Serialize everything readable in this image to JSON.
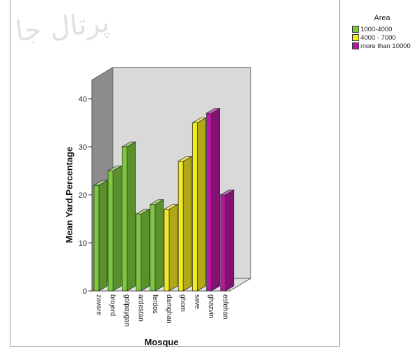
{
  "chart_data": {
    "type": "bar",
    "xlabel": "Mosque",
    "ylabel": "Mean Yard.Percentage",
    "ylim": [
      0,
      40
    ],
    "yticks": [
      0,
      10,
      20,
      30,
      40
    ],
    "categories": [
      "zavare",
      "brojerd",
      "golpaygan",
      "ardestan",
      "ferdos",
      "damghan",
      "ghom",
      "save",
      "ghazvin",
      "esfehan"
    ],
    "values": [
      22,
      25,
      30,
      16,
      18,
      17,
      27,
      35,
      37,
      20
    ],
    "groups": [
      "1000-4000",
      "1000-4000",
      "1000-4000",
      "1000-4000",
      "1000-4000",
      "4000 - 7000",
      "4000 - 7000",
      "4000 - 7000",
      "more than 10000",
      "more than 10000"
    ],
    "grid": false,
    "legend_position": "right"
  },
  "legend": {
    "title": "Area",
    "items": [
      {
        "label": "1000-4000",
        "color": "#7dc93c"
      },
      {
        "label": "4000 - 7000",
        "color": "#f4ea1e"
      },
      {
        "label": "more than 10000",
        "color": "#b4189f"
      }
    ]
  },
  "watermark_text": "پرتال جا"
}
